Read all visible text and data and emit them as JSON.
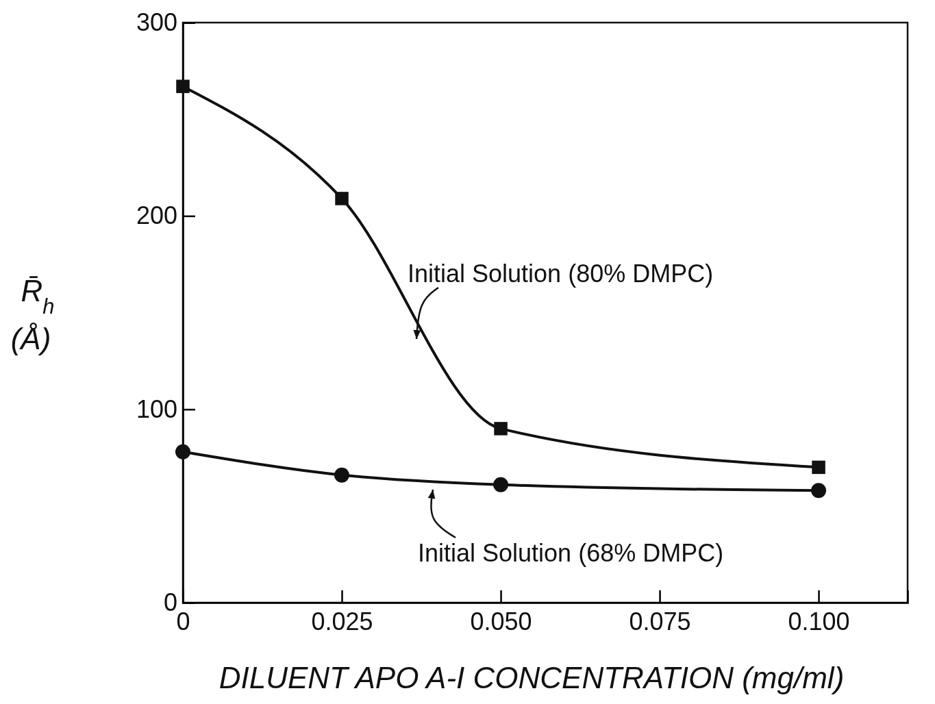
{
  "chart_data": {
    "type": "line",
    "xlabel": "DILUENT APO A-I CONCENTRATION (mg/ml)",
    "ylabel": "R̄$_{h}$ (Å)",
    "xlim": [
      0,
      0.114
    ],
    "ylim": [
      0,
      300
    ],
    "xticks": [
      0,
      {
        "value": 0.025,
        "label": "0.025"
      },
      {
        "value": 0.05,
        "label": "0.050"
      },
      {
        "value": 0.075,
        "label": "0.075"
      },
      {
        "value": 0.1,
        "label": "0.100"
      }
    ],
    "yticks": [
      0,
      100,
      200,
      300
    ],
    "x": [
      0,
      0.025,
      0.05,
      0.1
    ],
    "series": [
      {
        "name": "Initial Solution (80% DMPC)",
        "color": "#111111",
        "marker": "square",
        "values": [
          267,
          209,
          90,
          70
        ]
      },
      {
        "name": "Initial Solution (68% DMPC)",
        "color": "#111111",
        "marker": "circle",
        "values": [
          78,
          66,
          61,
          58
        ]
      }
    ],
    "grid": false,
    "line_style": "solid"
  }
}
